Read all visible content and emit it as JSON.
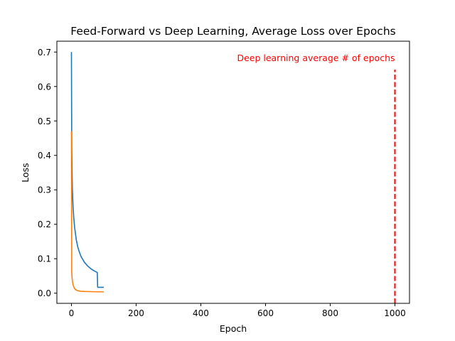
{
  "chart_data": {
    "type": "line",
    "title": "Feed-Forward vs Deep Learning, Average Loss over Epochs",
    "xlabel": "Epoch",
    "ylabel": "Loss",
    "xlim": [
      -45,
      1045
    ],
    "ylim": [
      -0.0295,
      0.7315
    ],
    "xticks": [
      0,
      200,
      400,
      600,
      800,
      1000
    ],
    "yticks": [
      0.0,
      0.1,
      0.2,
      0.3,
      0.4,
      0.5,
      0.6,
      0.7
    ],
    "xtick_labels": [
      "0",
      "200",
      "400",
      "600",
      "800",
      "1000"
    ],
    "ytick_labels": [
      "0.0",
      "0.1",
      "0.2",
      "0.3",
      "0.4",
      "0.5",
      "0.6",
      "0.7"
    ],
    "grid": false,
    "series": [
      {
        "color": "#1f77b4",
        "x": [
          0,
          1,
          2,
          3,
          5,
          7,
          10,
          15,
          20,
          25,
          30,
          40,
          50,
          60,
          70,
          80,
          81,
          82,
          90,
          100
        ],
        "y": [
          0.7,
          0.42,
          0.345,
          0.3,
          0.252,
          0.222,
          0.19,
          0.155,
          0.133,
          0.118,
          0.106,
          0.09,
          0.079,
          0.071,
          0.065,
          0.06,
          0.018,
          0.017,
          0.017,
          0.017
        ]
      },
      {
        "color": "#ff7f0e",
        "x": [
          0,
          1,
          2,
          3,
          5,
          7,
          10,
          15,
          20,
          30,
          40,
          60,
          80,
          100
        ],
        "y": [
          0.47,
          0.06,
          0.045,
          0.035,
          0.025,
          0.019,
          0.013,
          0.009,
          0.007,
          0.0055,
          0.005,
          0.0045,
          0.004,
          0.004
        ]
      }
    ],
    "vline": {
      "x": 1000,
      "color": "#ff0000",
      "style": "dashed",
      "label": "Deep learning average # of epochs"
    }
  }
}
